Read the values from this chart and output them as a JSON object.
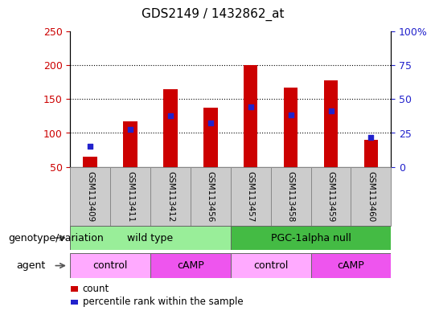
{
  "title": "GDS2149 / 1432862_at",
  "samples": [
    "GSM113409",
    "GSM113411",
    "GSM113412",
    "GSM113456",
    "GSM113457",
    "GSM113458",
    "GSM113459",
    "GSM113460"
  ],
  "count_values": [
    65,
    117,
    165,
    137,
    200,
    167,
    178,
    90
  ],
  "percentile_values": [
    80,
    105,
    125,
    115,
    138,
    127,
    133,
    93
  ],
  "bar_bottom": 50,
  "left_ylim": [
    50,
    250
  ],
  "left_yticks": [
    50,
    100,
    150,
    200,
    250
  ],
  "right_ylim": [
    0,
    100
  ],
  "right_yticks": [
    0,
    25,
    50,
    75,
    100
  ],
  "right_yticklabels": [
    "0",
    "25",
    "50",
    "75",
    "100%"
  ],
  "bar_color": "#cc0000",
  "percentile_color": "#2222cc",
  "left_tick_color": "#cc0000",
  "right_tick_color": "#2222cc",
  "genotype_groups": [
    {
      "label": "wild type",
      "start": 0,
      "end": 4,
      "color": "#99ee99"
    },
    {
      "label": "PGC-1alpha null",
      "start": 4,
      "end": 8,
      "color": "#44bb44"
    }
  ],
  "agent_groups": [
    {
      "label": "control",
      "start": 0,
      "end": 2,
      "color": "#ffaaff"
    },
    {
      "label": "cAMP",
      "start": 2,
      "end": 4,
      "color": "#ee55ee"
    },
    {
      "label": "control",
      "start": 4,
      "end": 6,
      "color": "#ffaaff"
    },
    {
      "label": "cAMP",
      "start": 6,
      "end": 8,
      "color": "#ee55ee"
    }
  ],
  "legend_items": [
    {
      "label": "count",
      "color": "#cc0000"
    },
    {
      "label": "percentile rank within the sample",
      "color": "#2222cc"
    }
  ],
  "bg_color": "#ffffff",
  "bar_width": 0.35,
  "sample_label_fontsize": 7.5,
  "row_label_fontsize": 9,
  "grid_yticks": [
    100,
    150,
    200
  ]
}
